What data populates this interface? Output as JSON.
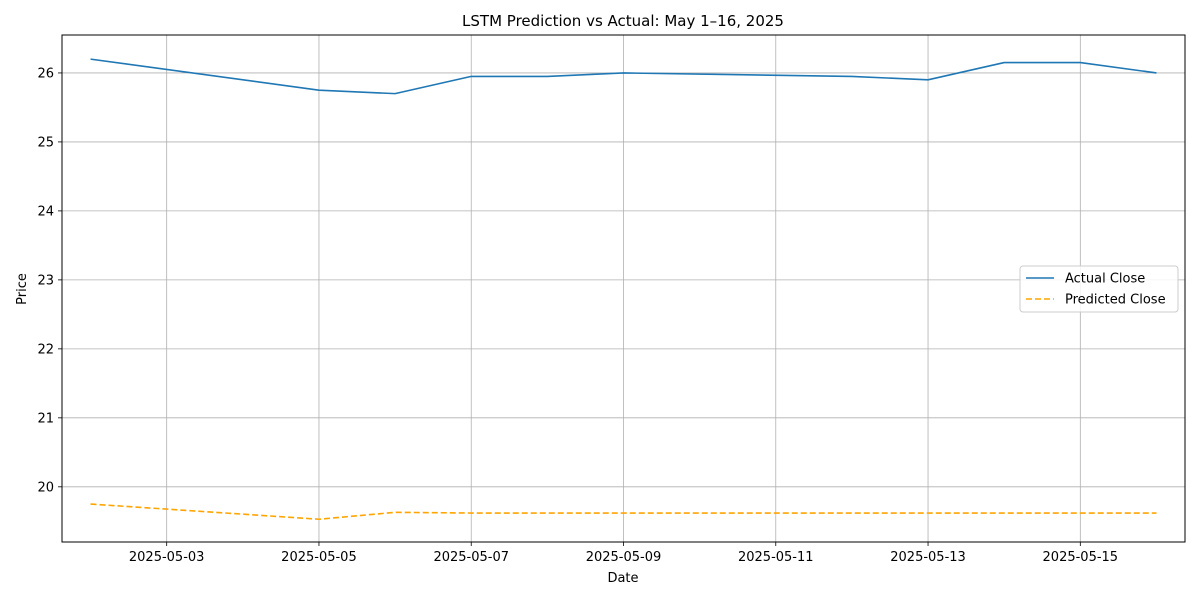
{
  "chart_data": {
    "type": "line",
    "title": "LSTM Prediction vs Actual: May 1–16, 2025",
    "xlabel": "Date",
    "ylabel": "Price",
    "xlim": [
      "2025-05-01T15:00",
      "2025-05-16T09:00"
    ],
    "ylim": [
      19.2,
      26.55
    ],
    "x": [
      "2025-05-02",
      "2025-05-05",
      "2025-05-06",
      "2025-05-07",
      "2025-05-08",
      "2025-05-09",
      "2025-05-12",
      "2025-05-13",
      "2025-05-14",
      "2025-05-15",
      "2025-05-16"
    ],
    "x_ticks": [
      "2025-05-03",
      "2025-05-05",
      "2025-05-07",
      "2025-05-09",
      "2025-05-11",
      "2025-05-13",
      "2025-05-15"
    ],
    "y_ticks": [
      20,
      21,
      22,
      23,
      24,
      25,
      26
    ],
    "grid": true,
    "legend_position": "center-right",
    "series": [
      {
        "name": "Actual Close",
        "color": "#1f77b4",
        "style": "solid",
        "values": [
          26.2,
          25.75,
          25.7,
          25.95,
          25.95,
          26.0,
          25.95,
          25.9,
          26.15,
          26.15,
          26.0
        ]
      },
      {
        "name": "Predicted Close",
        "color": "#ffa500",
        "style": "dashed",
        "values": [
          19.75,
          19.53,
          19.63,
          19.62,
          19.62,
          19.62,
          19.62,
          19.62,
          19.62,
          19.62,
          19.62
        ]
      }
    ]
  }
}
